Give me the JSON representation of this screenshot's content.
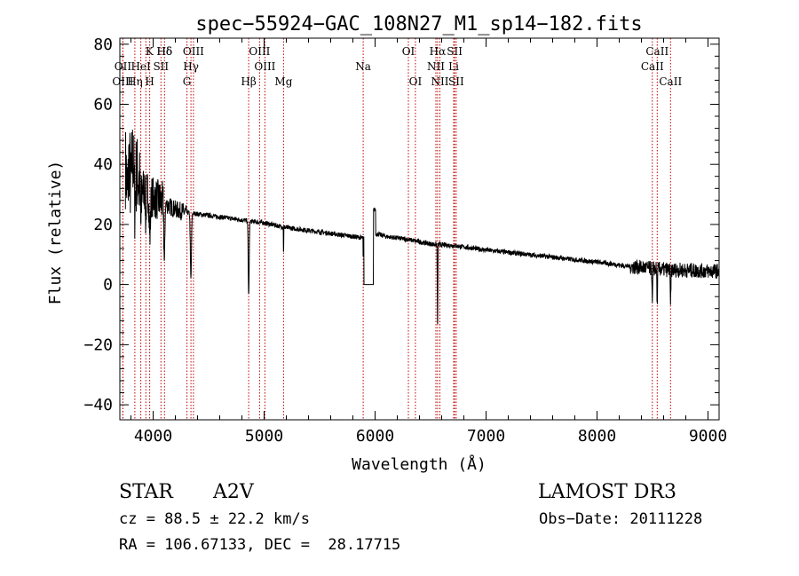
{
  "chart_data": {
    "type": "line",
    "title": "spec−55924−GAC_108N27_M1_sp14−182.fits",
    "xlabel": "Wavelength (Å)",
    "ylabel": "Flux (relative)",
    "xlim": [
      3700,
      9100
    ],
    "ylim": [
      -45,
      82
    ],
    "x_ticks": [
      4000,
      5000,
      6000,
      7000,
      8000,
      9000
    ],
    "y_ticks": [
      -40,
      -20,
      0,
      20,
      40,
      60,
      80
    ],
    "y_tick_labels": [
      "−40",
      "−20",
      "0",
      "20",
      "40",
      "60",
      "80"
    ],
    "spectrum_anchors": [
      [
        3750,
        40
      ],
      [
        3780,
        48
      ],
      [
        3800,
        46
      ],
      [
        3830,
        40
      ],
      [
        3860,
        36
      ],
      [
        3900,
        33
      ],
      [
        3950,
        31
      ],
      [
        4000,
        29
      ],
      [
        4100,
        27
      ],
      [
        4200,
        25
      ],
      [
        4300,
        24
      ],
      [
        4400,
        23.5
      ],
      [
        4500,
        23
      ],
      [
        4600,
        22.5
      ],
      [
        4700,
        22
      ],
      [
        4800,
        21.5
      ],
      [
        4900,
        21
      ],
      [
        5000,
        20.5
      ],
      [
        5200,
        19
      ],
      [
        5400,
        18
      ],
      [
        5600,
        17
      ],
      [
        5800,
        16
      ],
      [
        5900,
        15.5
      ],
      [
        6000,
        17
      ],
      [
        6100,
        16
      ],
      [
        6300,
        15
      ],
      [
        6500,
        13.5
      ],
      [
        6700,
        13
      ],
      [
        7000,
        11.5
      ],
      [
        7500,
        9.5
      ],
      [
        8000,
        7.5
      ],
      [
        8300,
        6
      ],
      [
        8600,
        5
      ],
      [
        9000,
        4.5
      ],
      [
        9100,
        4.5
      ]
    ],
    "absorption_dips": [
      [
        3770,
        15,
        12
      ],
      [
        3798,
        14,
        10
      ],
      [
        3835,
        12,
        8
      ],
      [
        3889,
        14,
        8
      ],
      [
        3933,
        10,
        6
      ],
      [
        3970,
        14,
        8
      ],
      [
        4101,
        20,
        6
      ],
      [
        4340,
        22,
        7
      ],
      [
        4861,
        25,
        6
      ],
      [
        5175,
        12,
        1.5
      ],
      [
        5893,
        10,
        1.5
      ],
      [
        6563,
        30,
        3
      ],
      [
        8498,
        12,
        4
      ],
      [
        8542,
        12,
        4
      ],
      [
        8662,
        12,
        4
      ]
    ],
    "gap_region": [
      5900,
      5985,
      0
    ],
    "emission_lines": [
      {
        "label": "Hδ",
        "x": 4102,
        "row": 1,
        "ox": 0
      },
      {
        "label": "K",
        "x": 3934,
        "row": 1,
        "ox": 4
      },
      {
        "label": "Hδ",
        "x": 4102,
        "row": 1,
        "ox": 0
      },
      {
        "label": "OIII",
        "x": 4363,
        "row": 1,
        "ox": 0
      },
      {
        "label": "OIII",
        "x": 4959,
        "row": 1,
        "ox": 0
      },
      {
        "label": "OI",
        "x": 6300,
        "row": 1,
        "ox": 0
      },
      {
        "label": "Hα",
        "x": 6563,
        "row": 1,
        "ox": 0
      },
      {
        "label": "SII",
        "x": 6717,
        "row": 1,
        "ox": 0
      },
      {
        "label": "CaII",
        "x": 8542,
        "row": 1,
        "ox": 0
      },
      {
        "label": "OII",
        "x": 3727,
        "row": 2,
        "ox": 0
      },
      {
        "label": "HeI",
        "x": 3889,
        "row": 2,
        "ox": 0
      },
      {
        "label": "SII",
        "x": 4070,
        "row": 2,
        "ox": 0
      },
      {
        "label": "Hγ",
        "x": 4341,
        "row": 2,
        "ox": 0
      },
      {
        "label": "OIII",
        "x": 5007,
        "row": 2,
        "ox": 0
      },
      {
        "label": "Na",
        "x": 5893,
        "row": 2,
        "ox": 0
      },
      {
        "label": "NII",
        "x": 6548,
        "row": 2,
        "ox": 0
      },
      {
        "label": "Li",
        "x": 6708,
        "row": 2,
        "ox": 0
      },
      {
        "label": "CaII",
        "x": 8498,
        "row": 2,
        "ox": 0
      },
      {
        "label": "OIII",
        "x": 3727,
        "row": 3,
        "ox": 0
      },
      {
        "label": "Hη",
        "x": 3835,
        "row": 3,
        "ox": 0
      },
      {
        "label": "H",
        "x": 3969,
        "row": 3,
        "ox": 0
      },
      {
        "label": "G",
        "x": 4305,
        "row": 3,
        "ox": 0
      },
      {
        "label": "Hβ",
        "x": 4861,
        "row": 3,
        "ox": 0
      },
      {
        "label": "Mg",
        "x": 5175,
        "row": 3,
        "ox": 0
      },
      {
        "label": "OI",
        "x": 6363,
        "row": 3,
        "ox": 0
      },
      {
        "label": "NII",
        "x": 6584,
        "row": 3,
        "ox": 0
      },
      {
        "label": "SII",
        "x": 6731,
        "row": 3,
        "ox": 0
      },
      {
        "label": "CaII",
        "x": 8662,
        "row": 3,
        "ox": 0
      }
    ],
    "line_color": "#000000",
    "marker_color": "#c00000"
  },
  "info": {
    "object_type": "STAR",
    "subclass": "A2V",
    "survey": "LAMOST DR3",
    "cz": "cz = 88.5 ± 22.2 km/s",
    "obs_date": "Obs−Date: 20111228",
    "radec": "RA = 106.67133, DEC =  28.17715"
  }
}
